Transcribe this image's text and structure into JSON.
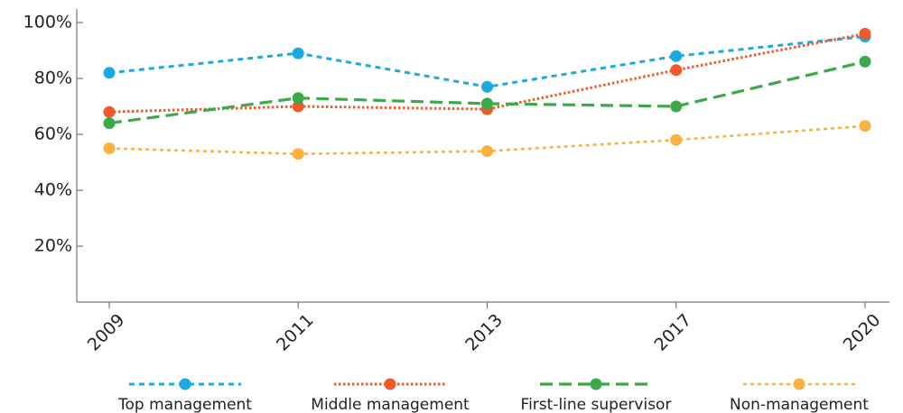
{
  "chart_data": {
    "type": "line",
    "categories": [
      "2009",
      "2011",
      "2013",
      "2017",
      "2020"
    ],
    "series": [
      {
        "name": "Top management",
        "color": "#1ba9e1",
        "values": [
          82,
          89,
          77,
          88,
          95
        ]
      },
      {
        "name": "Middle management",
        "color": "#ef5a28",
        "values": [
          68,
          70,
          69,
          83,
          96
        ]
      },
      {
        "name": "First-line supervisor",
        "color": "#3aaa48",
        "values": [
          64,
          73,
          71,
          70,
          86
        ]
      },
      {
        "name": "Non-management",
        "color": "#fbb040",
        "values": [
          55,
          53,
          54,
          58,
          63
        ]
      }
    ],
    "ylim": [
      0,
      105
    ],
    "yticks": [
      {
        "value": 20,
        "label": "20%"
      },
      {
        "value": 40,
        "label": "40%"
      },
      {
        "value": 60,
        "label": "60%"
      },
      {
        "value": 80,
        "label": "80%"
      },
      {
        "value": 100,
        "label": "100%"
      }
    ],
    "legend": "bottom"
  }
}
